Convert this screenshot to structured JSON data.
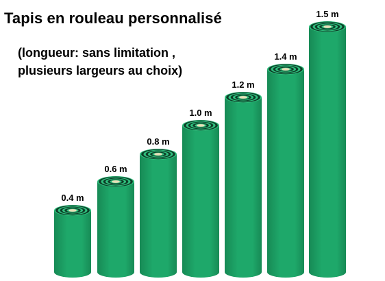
{
  "header": {
    "title": "Tapis en rouleau personnalisé",
    "subtitle_line1": "(longueur: sans limitation ,",
    "subtitle_line2": "plusieurs largeurs au choix)"
  },
  "rolls": [
    {
      "label": "0.4 m",
      "width_m": 0.4
    },
    {
      "label": "0.6 m",
      "width_m": 0.6
    },
    {
      "label": "0.8 m",
      "width_m": 0.8
    },
    {
      "label": "1.0 m",
      "width_m": 1.0
    },
    {
      "label": "1.2 m",
      "width_m": 1.2
    },
    {
      "label": "1.4 m",
      "width_m": 1.4
    },
    {
      "label": "1.5 m",
      "width_m": 1.5
    }
  ],
  "colors": {
    "roll_body": "#1ea86a",
    "roll_shade": "#178a55",
    "roll_top": "#2fbf7d",
    "roll_ring_dark": "#0d3d27",
    "core": "#e9dfb8"
  }
}
